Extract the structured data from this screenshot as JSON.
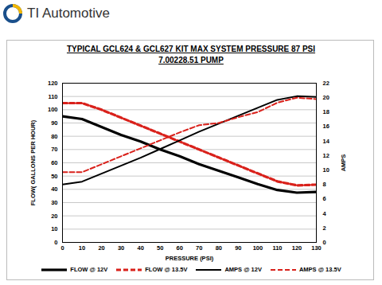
{
  "chart_data": {
    "type": "line",
    "logo_text": "TI Automotive",
    "title": "TYPICAL GCL624 & GCL627 KIT MAX SYSTEM PRESSURE 87 PSI",
    "subtitle": "7.00228.51 PUMP",
    "x_label": "PRESSURE (PSI)",
    "y_label": "FLOW( GALLONS PER HOUR)",
    "y2_label": "AMPS",
    "x": [
      0,
      10,
      20,
      30,
      40,
      50,
      60,
      70,
      80,
      90,
      100,
      110,
      120,
      130
    ],
    "xlim": [
      0,
      130
    ],
    "xticks": [
      0,
      10,
      20,
      30,
      40,
      50,
      60,
      70,
      80,
      90,
      100,
      110,
      120,
      130
    ],
    "ylim": [
      0,
      120
    ],
    "yticks": [
      0,
      10,
      20,
      30,
      40,
      50,
      60,
      70,
      80,
      90,
      100,
      110,
      120
    ],
    "y2lim": [
      0,
      22
    ],
    "y2ticks": [
      0,
      2,
      4,
      6,
      8,
      10,
      12,
      14,
      16,
      18,
      20,
      22
    ],
    "grid": true,
    "legend": "bottom",
    "series": [
      {
        "name": "FLOW @ 12V",
        "color": "#000000",
        "line_style": "solid",
        "values": [
          95,
          93,
          87,
          81,
          76,
          70,
          65,
          59,
          54,
          49,
          44,
          39.5,
          37.5,
          38
        ]
      },
      {
        "name": "FLOW @ 13.5V",
        "color": "#d9211b",
        "line_style": "dashed",
        "values": [
          105,
          105,
          100,
          94,
          88,
          82,
          76,
          70,
          64,
          58,
          52,
          46,
          43,
          43.5
        ]
      },
      {
        "name": "AMPS @ 12V",
        "color": "#000000",
        "line_style": "solid",
        "axis": "y2",
        "values": [
          8.0,
          8.4,
          9.5,
          10.6,
          11.7,
          12.9,
          14.1,
          15.3,
          16.4,
          17.5,
          18.6,
          19.7,
          20.2,
          20.1
        ]
      },
      {
        "name": "AMPS @ 13.5V",
        "color": "#d9211b",
        "line_style": "dashed",
        "axis": "y2",
        "values": [
          9.7,
          9.7,
          10.8,
          11.9,
          13.0,
          14.1,
          15.2,
          16.2,
          16.5,
          17.3,
          18.0,
          19.3,
          20.0,
          19.8
        ]
      }
    ]
  }
}
